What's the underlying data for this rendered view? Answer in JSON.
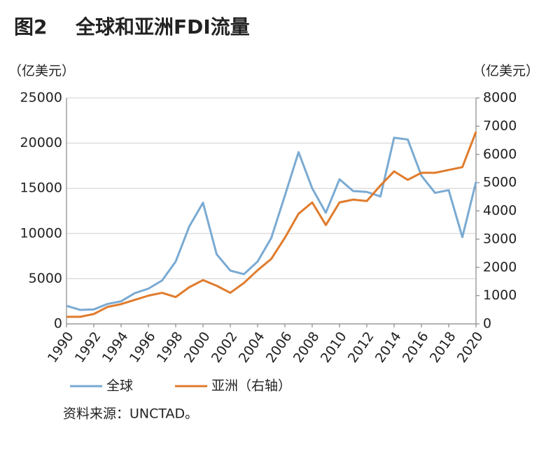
{
  "chart_data": {
    "type": "line",
    "figure_number": "图2",
    "title": "全球和亚洲FDI流量",
    "y_label": "（亿美元）",
    "y2_label": "（亿美元）",
    "source": "资料来源：UNCTAD。",
    "x": [
      1990,
      1991,
      1992,
      1993,
      1994,
      1995,
      1996,
      1997,
      1998,
      1999,
      2000,
      2001,
      2002,
      2003,
      2004,
      2005,
      2006,
      2007,
      2008,
      2009,
      2010,
      2011,
      2012,
      2013,
      2014,
      2015,
      2016,
      2017,
      2018,
      2019,
      2020
    ],
    "xlim": [
      1990,
      2020
    ],
    "xticks": [
      1990,
      1992,
      1994,
      1996,
      1998,
      2000,
      2002,
      2004,
      2006,
      2008,
      2010,
      2012,
      2014,
      2016,
      2018,
      2020
    ],
    "ylim": [
      0,
      25000
    ],
    "yticks": [
      0,
      5000,
      10000,
      15000,
      20000,
      25000
    ],
    "y2lim": [
      0,
      8000
    ],
    "y2ticks": [
      0,
      1000,
      2000,
      3000,
      4000,
      5000,
      6000,
      7000,
      8000
    ],
    "grid": true,
    "series": [
      {
        "name": "全球",
        "color": "#7aaad2",
        "values": [
          2000,
          1550,
          1600,
          2200,
          2500,
          3400,
          3900,
          4800,
          6900,
          10800,
          13400,
          7700,
          5900,
          5500,
          6900,
          9500,
          14200,
          19000,
          15000,
          12300,
          16000,
          14700,
          14600,
          14100,
          20600,
          20400,
          16400,
          14500,
          14800,
          9600,
          15700
        ]
      },
      {
        "name": "亚洲（右轴）",
        "color": "#e07b2c",
        "axis": "y2",
        "values": [
          250,
          250,
          350,
          600,
          700,
          850,
          1000,
          1100,
          950,
          1300,
          1550,
          1350,
          1100,
          1450,
          1900,
          2300,
          3050,
          3900,
          4300,
          3500,
          4300,
          4400,
          4350,
          4900,
          5400,
          5100,
          5350,
          5350,
          5450,
          5550,
          6800
        ]
      }
    ]
  }
}
